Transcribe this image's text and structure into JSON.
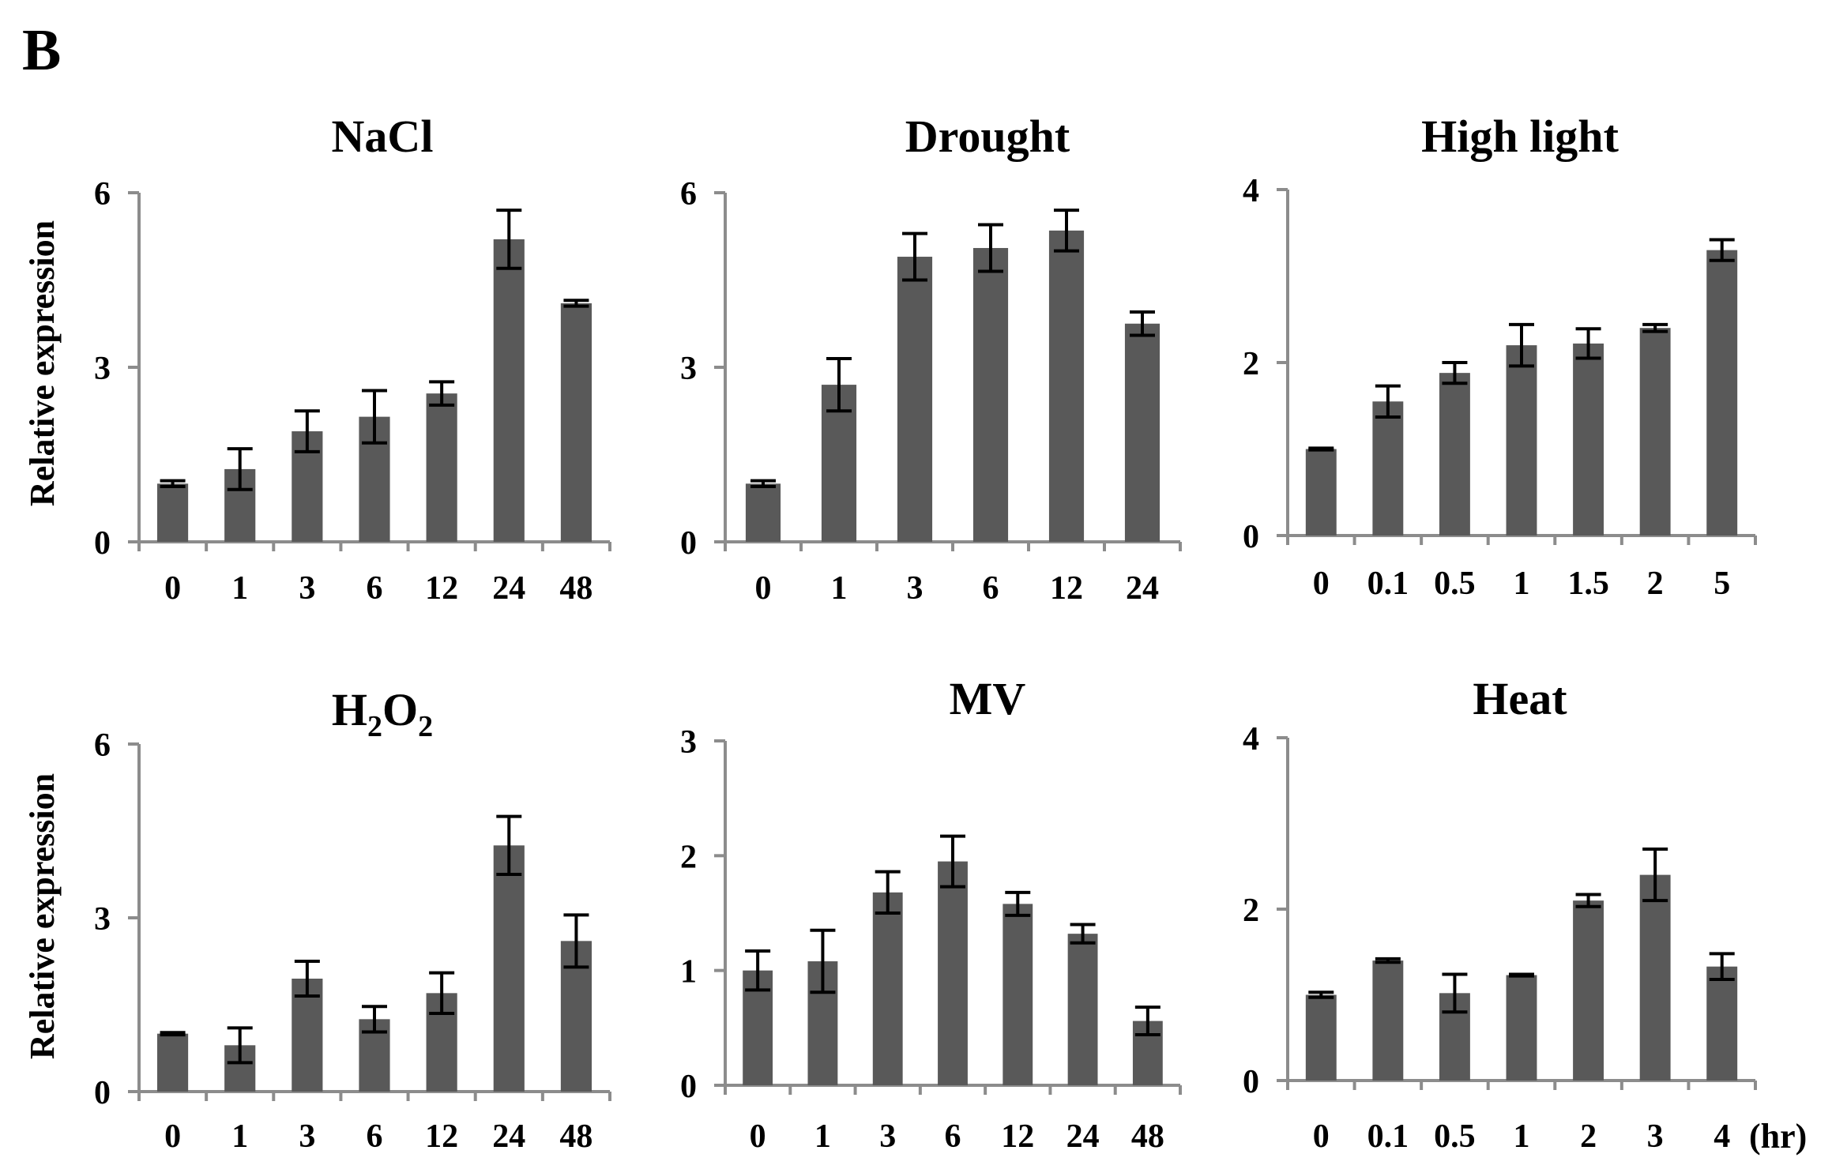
{
  "panel_letter": "B",
  "ylabel": "Relative expression",
  "unit_label": "(hr)",
  "colors": {
    "bar": "#595959",
    "axis": "#8c8c8c",
    "error": "#000000"
  },
  "chart_data": [
    {
      "type": "bar",
      "title": "NaCl",
      "title_sub": "",
      "title_tail": "",
      "ylim": [
        0,
        6
      ],
      "yticks": [
        "0",
        "3",
        "6"
      ],
      "categories": [
        "0",
        "1",
        "3",
        "6",
        "12",
        "24",
        "48"
      ],
      "values": [
        1.0,
        1.25,
        1.9,
        2.15,
        2.55,
        5.2,
        4.1
      ],
      "errors": [
        0.05,
        0.35,
        0.35,
        0.45,
        0.2,
        0.5,
        0.05
      ]
    },
    {
      "type": "bar",
      "title": "Drought",
      "title_sub": "",
      "title_tail": "",
      "ylim": [
        0,
        6
      ],
      "yticks": [
        "0",
        "3",
        "6"
      ],
      "categories": [
        "0",
        "1",
        "3",
        "6",
        "12",
        "24"
      ],
      "values": [
        1.0,
        2.7,
        4.9,
        5.05,
        5.35,
        3.75
      ],
      "errors": [
        0.05,
        0.45,
        0.4,
        0.4,
        0.35,
        0.2
      ]
    },
    {
      "type": "bar",
      "title": "High light",
      "title_sub": "",
      "title_tail": "",
      "ylim": [
        0,
        4
      ],
      "yticks": [
        "0",
        "2",
        "4"
      ],
      "categories": [
        "0",
        "0.1",
        "0.5",
        "1",
        "1.5",
        "2",
        "5"
      ],
      "values": [
        1.0,
        1.55,
        1.88,
        2.2,
        2.22,
        2.4,
        3.3
      ],
      "errors": [
        0.01,
        0.18,
        0.12,
        0.24,
        0.17,
        0.04,
        0.12
      ]
    },
    {
      "type": "bar",
      "title": "H",
      "title_sub": "2",
      "title_tail": "O",
      "title_sub2": "2",
      "ylim": [
        0,
        6
      ],
      "yticks": [
        "0",
        "3",
        "6"
      ],
      "categories": [
        "0",
        "1",
        "3",
        "6",
        "12",
        "24",
        "48"
      ],
      "values": [
        1.0,
        0.8,
        1.95,
        1.25,
        1.7,
        4.25,
        2.6
      ],
      "errors": [
        0.02,
        0.3,
        0.3,
        0.22,
        0.35,
        0.5,
        0.45
      ]
    },
    {
      "type": "bar",
      "title": "MV",
      "title_sub": "",
      "title_tail": "",
      "ylim": [
        0,
        3
      ],
      "yticks": [
        "0",
        "1",
        "2",
        "3"
      ],
      "categories": [
        "0",
        "1",
        "3",
        "6",
        "12",
        "24",
        "48"
      ],
      "values": [
        1.0,
        1.08,
        1.68,
        1.95,
        1.58,
        1.32,
        0.56
      ],
      "errors": [
        0.17,
        0.27,
        0.18,
        0.22,
        0.1,
        0.08,
        0.12
      ]
    },
    {
      "type": "bar",
      "title": "Heat",
      "title_sub": "",
      "title_tail": "",
      "ylim": [
        0,
        4
      ],
      "yticks": [
        "0",
        "2",
        "4"
      ],
      "categories": [
        "0",
        "0.1",
        "0.5",
        "1",
        "2",
        "3",
        "4"
      ],
      "values": [
        1.0,
        1.4,
        1.02,
        1.23,
        2.1,
        2.4,
        1.33
      ],
      "errors": [
        0.03,
        0.02,
        0.22,
        0.01,
        0.07,
        0.3,
        0.15
      ]
    }
  ]
}
